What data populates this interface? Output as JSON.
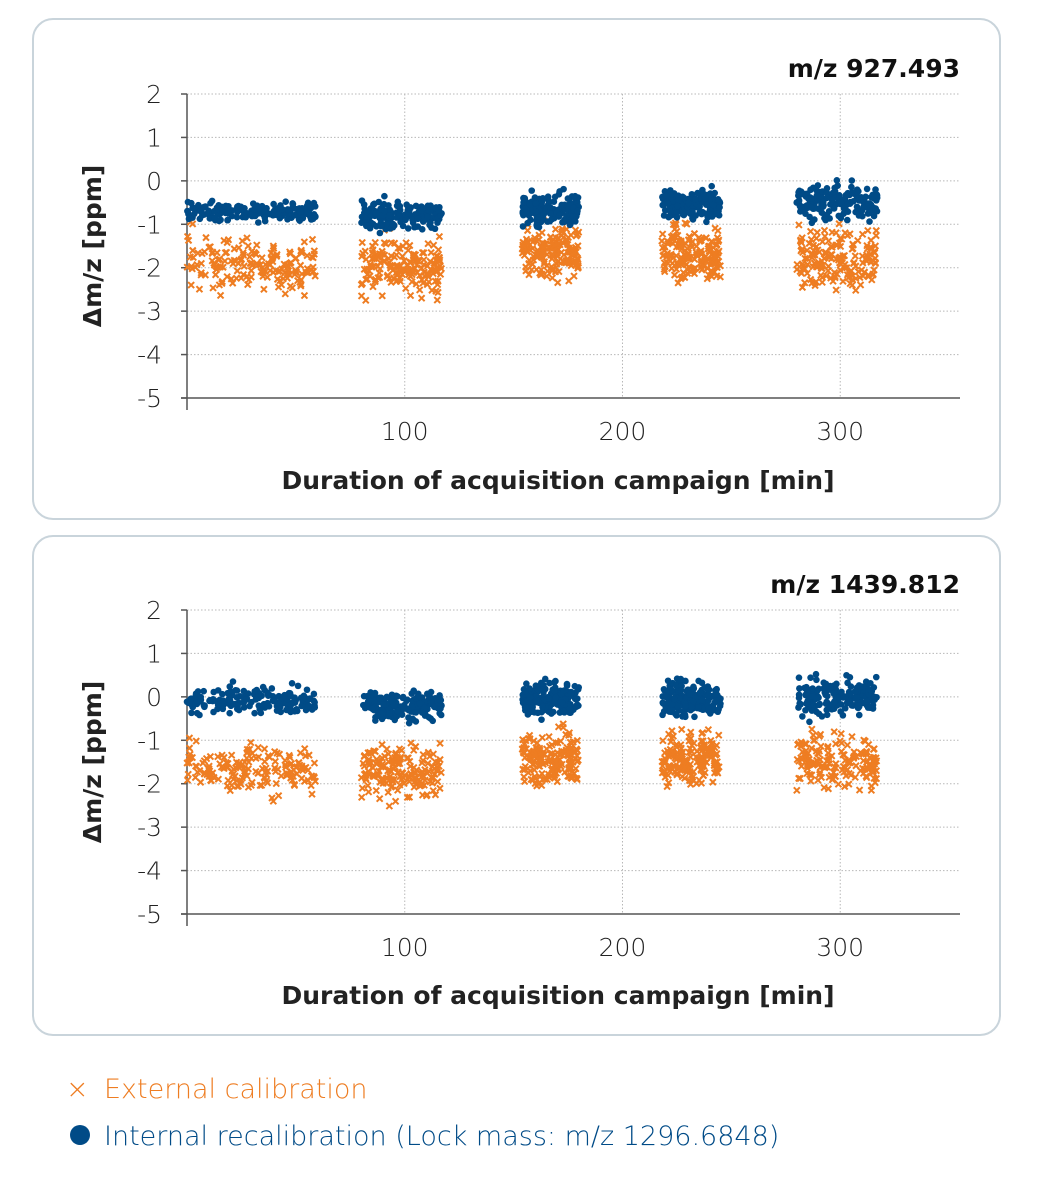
{
  "colors": {
    "external": "#ee7d22",
    "internal": "#004b87",
    "panel_border": "#c9d4db"
  },
  "legend": {
    "external": {
      "marker": "×",
      "label": "External calibration"
    },
    "internal": {
      "marker": "●",
      "label": "Internal recalibration (Lock mass: m/z 1296.6848)"
    }
  },
  "chart_data": [
    {
      "type": "scatter",
      "title": "m/z 927.493",
      "xlabel": "Duration of acquisition campaign [min]",
      "ylabel": "Δm/z [ppm]",
      "xlim": [
        0,
        355
      ],
      "ylim": [
        -5,
        2
      ],
      "xticks": [
        "100",
        "200",
        "300"
      ],
      "xtick_values": [
        100,
        200,
        300
      ],
      "yticks": [
        "2",
        "1",
        "0",
        "-1",
        "-2",
        "-3",
        "-4",
        "-5"
      ],
      "ytick_values": [
        2,
        1,
        0,
        -1,
        -2,
        -3,
        -4,
        -5
      ],
      "grid": true,
      "series": [
        {
          "name": "External calibration",
          "marker": "x",
          "segments": [
            {
              "x": [
                0,
                59
              ],
              "y": [
                -2.8,
                -1.1
              ],
              "start_y": -0.4
            },
            {
              "x": [
                80,
                117
              ],
              "y": [
                -2.9,
                -1.0
              ]
            },
            {
              "x": [
                154,
                180
              ],
              "y": [
                -2.5,
                -0.8
              ]
            },
            {
              "x": [
                218,
                245
              ],
              "y": [
                -2.6,
                -0.8
              ]
            },
            {
              "x": [
                280,
                317
              ],
              "y": [
                -2.7,
                -0.9
              ]
            }
          ]
        },
        {
          "name": "Internal recalibration (Lock mass: m/z 1296.6848)",
          "marker": "circle",
          "segments": [
            {
              "x": [
                0,
                59
              ],
              "y": [
                -1.0,
                -0.4
              ]
            },
            {
              "x": [
                80,
                117
              ],
              "y": [
                -1.2,
                -0.4
              ]
            },
            {
              "x": [
                154,
                180
              ],
              "y": [
                -1.1,
                -0.2
              ]
            },
            {
              "x": [
                218,
                245
              ],
              "y": [
                -1.0,
                -0.1
              ]
            },
            {
              "x": [
                280,
                317
              ],
              "y": [
                -1.0,
                0.0
              ]
            }
          ]
        }
      ]
    },
    {
      "type": "scatter",
      "title": "m/z 1439.812",
      "xlabel": "Duration of acquisition campaign [min]",
      "ylabel": "Δm/z [ppm]",
      "xlim": [
        0,
        355
      ],
      "ylim": [
        -5,
        2
      ],
      "xticks": [
        "100",
        "200",
        "300"
      ],
      "xtick_values": [
        100,
        200,
        300
      ],
      "yticks": [
        "2",
        "1",
        "0",
        "-1",
        "-2",
        "-3",
        "-4",
        "-5"
      ],
      "ytick_values": [
        2,
        1,
        0,
        -1,
        -2,
        -3,
        -4,
        -5
      ],
      "grid": true,
      "series": [
        {
          "name": "External calibration",
          "marker": "x",
          "segments": [
            {
              "x": [
                0,
                59
              ],
              "y": [
                -2.5,
                -0.9
              ],
              "start_y": 0.0
            },
            {
              "x": [
                80,
                117
              ],
              "y": [
                -2.6,
                -0.8
              ]
            },
            {
              "x": [
                154,
                180
              ],
              "y": [
                -2.3,
                -0.6
              ]
            },
            {
              "x": [
                218,
                245
              ],
              "y": [
                -2.3,
                -0.5
              ]
            },
            {
              "x": [
                280,
                317
              ],
              "y": [
                -2.4,
                -0.6
              ]
            }
          ]
        },
        {
          "name": "Internal recalibration (Lock mass: m/z 1296.6848)",
          "marker": "circle",
          "segments": [
            {
              "x": [
                0,
                59
              ],
              "y": [
                -0.5,
                0.3
              ]
            },
            {
              "x": [
                80,
                117
              ],
              "y": [
                -0.6,
                0.2
              ]
            },
            {
              "x": [
                154,
                180
              ],
              "y": [
                -0.6,
                0.5
              ]
            },
            {
              "x": [
                218,
                245
              ],
              "y": [
                -0.6,
                0.5
              ]
            },
            {
              "x": [
                280,
                317
              ],
              "y": [
                -0.6,
                0.6
              ]
            }
          ]
        }
      ]
    }
  ]
}
